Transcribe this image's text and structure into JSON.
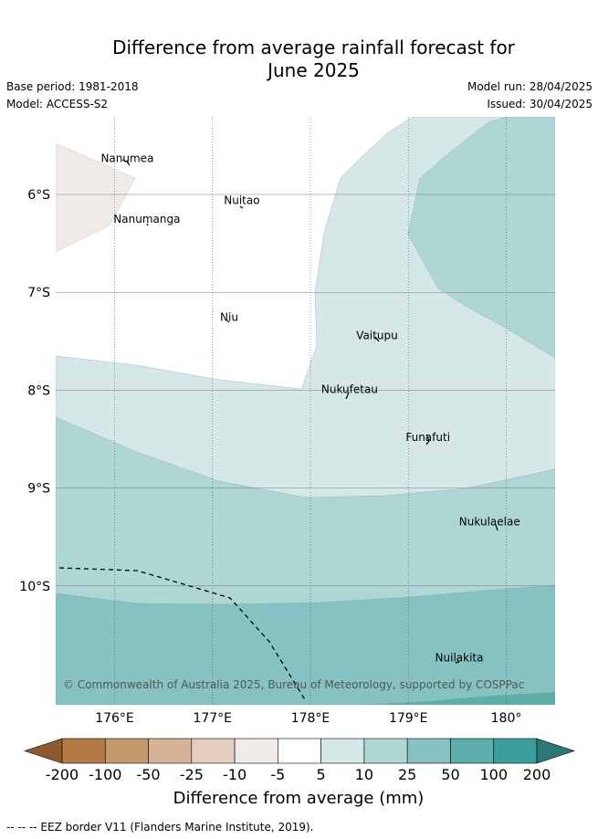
{
  "title_line1": "Difference from average rainfall forecast for",
  "title_line2": "June 2025",
  "base_period": "Base period: 1981-2018",
  "model": "Model: ACCESS-S2",
  "model_run": "Model run: 28/04/2025",
  "issued": "Issued: 30/04/2025",
  "map": {
    "lon_range": [
      175.4,
      180.5
    ],
    "lat_range": [
      -11.2,
      -5.2
    ],
    "lon_ticks": [
      {
        "value": 176,
        "label": "176°E"
      },
      {
        "value": 177,
        "label": "177°E"
      },
      {
        "value": 178,
        "label": "178°E"
      },
      {
        "value": 179,
        "label": "179°E"
      },
      {
        "value": 180,
        "label": "180°"
      }
    ],
    "lat_ticks": [
      {
        "value": -6,
        "label": "6°S"
      },
      {
        "value": -7,
        "label": "7°S"
      },
      {
        "value": -8,
        "label": "8°S"
      },
      {
        "value": -9,
        "label": "9°S"
      },
      {
        "value": -10,
        "label": "10°S"
      }
    ],
    "islands": [
      {
        "name": "Nanumea",
        "lon": 176.13,
        "lat": -5.67
      },
      {
        "name": "Nuitao",
        "lon": 177.3,
        "lat": -6.1
      },
      {
        "name": "Nanumanga",
        "lon": 176.33,
        "lat": -6.29
      },
      {
        "name": "Niu",
        "lon": 177.17,
        "lat": -7.29
      },
      {
        "name": "Vaitupu",
        "lon": 178.68,
        "lat": -7.48
      },
      {
        "name": "Nukufetau",
        "lon": 178.4,
        "lat": -8.03
      },
      {
        "name": "Funafuti",
        "lon": 179.2,
        "lat": -8.52
      },
      {
        "name": "Nukulaelae",
        "lon": 179.83,
        "lat": -9.38
      },
      {
        "name": "Nuilakita",
        "lon": 179.52,
        "lat": -10.77
      }
    ],
    "credit": "© Commonwealth of Australia 2025, Bureau of Meteorology, supported by COSPPac"
  },
  "colorbar": {
    "ticks": [
      "-200",
      "-100",
      "-50",
      "-25",
      "-10",
      "-5",
      "5",
      "10",
      "25",
      "50",
      "100",
      "200"
    ],
    "colors": [
      "#8c5a2b",
      "#b37b43",
      "#c4996e",
      "#d5b394",
      "#e5cdbb",
      "#f1ebe7",
      "#ffffff",
      "#d5e8e7",
      "#aed6d5",
      "#86c2c1",
      "#5eaeac",
      "#399e9c",
      "#2b7876"
    ],
    "label": "Difference from average (mm)"
  },
  "footnote": "-- -- -- EEZ border V11 (Flanders Marine Institute, 2019)."
}
